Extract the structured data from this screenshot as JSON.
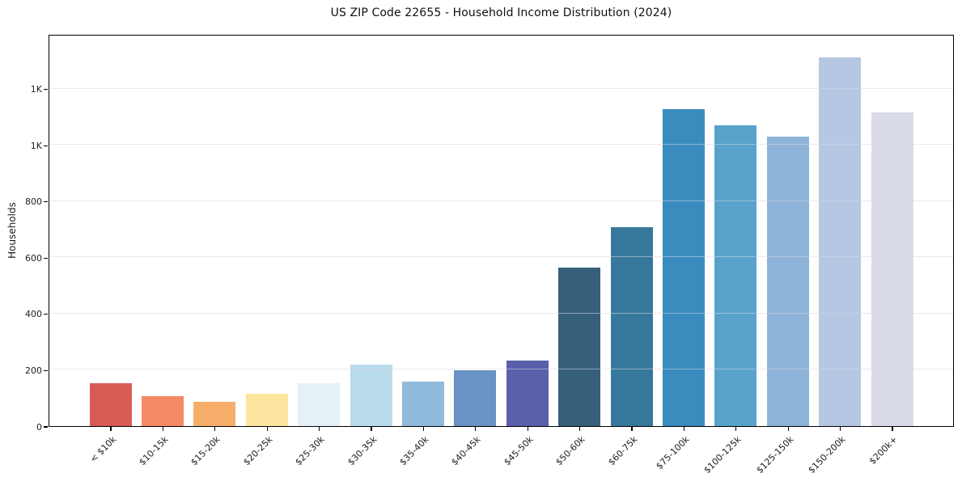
{
  "title": "US ZIP Code 22655 - Household Income Distribution (2024)",
  "chart_data": {
    "type": "bar",
    "title": "US ZIP Code 22655 - Household Income Distribution (2024)",
    "xlabel": "",
    "ylabel": "Households",
    "categories": [
      "< $10k",
      "$10-15k",
      "$15-20k",
      "$20-25k",
      "$25-30k",
      "$30-35k",
      "$35-40k",
      "$40-45k",
      "$45-50k",
      "$50-60k",
      "$60-75k",
      "$75-100k",
      "$100-125k",
      "$125-150k",
      "$150-200k",
      "$200k+"
    ],
    "values": [
      152,
      107,
      86,
      115,
      152,
      220,
      158,
      198,
      233,
      565,
      707,
      1128,
      1071,
      1029,
      1311,
      1115
    ],
    "bar_colors": [
      "#d85c53",
      "#f58a68",
      "#f8ae6b",
      "#fde5a0",
      "#e5f1f6",
      "#b9dcec",
      "#90badb",
      "#6b92c4",
      "#5a5fac",
      "#36607a",
      "#35789c",
      "#3a8cbf",
      "#58a3ca",
      "#8db4d8",
      "#b6c7e3",
      "#d9dbe9"
    ],
    "ylim": [
      0,
      1386
    ],
    "yticks": [
      {
        "value": 0,
        "label": "0"
      },
      {
        "value": 200,
        "label": "200"
      },
      {
        "value": 400,
        "label": "400"
      },
      {
        "value": 600,
        "label": "600"
      },
      {
        "value": 800,
        "label": "800"
      },
      {
        "value": 1000,
        "label": "1K"
      },
      {
        "value": 1200,
        "label": "1K"
      }
    ],
    "grid": "horizontal",
    "grid_above_bars": true,
    "legend": "none",
    "x_tick_rotation_deg": 45,
    "frame_color": "#000000",
    "background_color": "#ffffff"
  }
}
